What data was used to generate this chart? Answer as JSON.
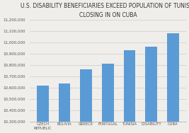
{
  "title": "U.S. DISABILITY BENEFICIARIES EXCEED POPULATION OF TUNISIA\nCLOSING IN ON CUBA",
  "categories": [
    "CZECH\nREPUBLIC",
    "BOLIVIA",
    "GREECE",
    "PORTUGAL",
    "TUNISIA",
    "DISABILITY",
    "CUBA"
  ],
  "values": [
    10620000,
    10635000,
    10760000,
    10810000,
    10930000,
    10960000,
    11080000
  ],
  "bar_color": "#5b9bd5",
  "ylim": [
    10300000,
    11200000
  ],
  "yticks": [
    10300000,
    10400000,
    10500000,
    10600000,
    10700000,
    10800000,
    10900000,
    11000000,
    11100000,
    11200000
  ],
  "background_color": "#f0eeea",
  "title_fontsize": 5.5,
  "tick_fontsize": 4.0,
  "xtick_fontsize": 3.8
}
